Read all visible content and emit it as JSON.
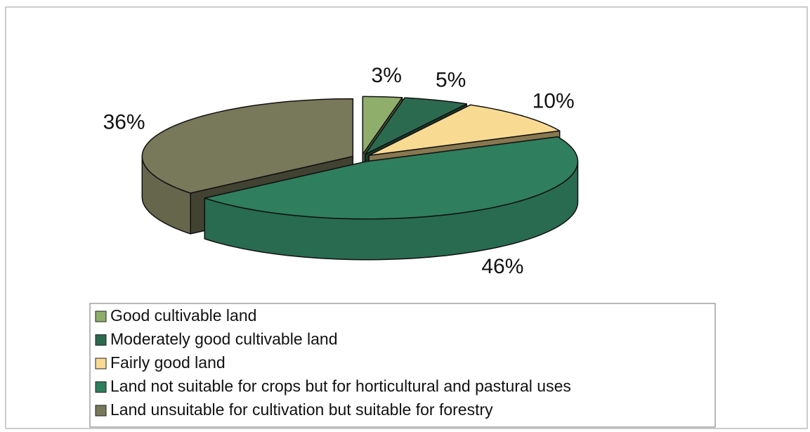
{
  "chart_data": {
    "type": "pie3d",
    "categories": [
      "Good cultivable land",
      "Moderately good cultivable land",
      "Fairly good land",
      "Land not suitable for crops but for horticultural and pastural uses",
      "Land unsuitable for cultivation but suitable for forestry"
    ],
    "values": [
      3,
      5,
      10,
      46,
      36
    ],
    "value_labels": [
      "3%",
      "5%",
      "10%",
      "46%",
      "36%"
    ],
    "colors": [
      "#8fae6c",
      "#2c6a50",
      "#f8da92",
      "#2f7e5e",
      "#78785a"
    ],
    "legend": "bottom"
  }
}
